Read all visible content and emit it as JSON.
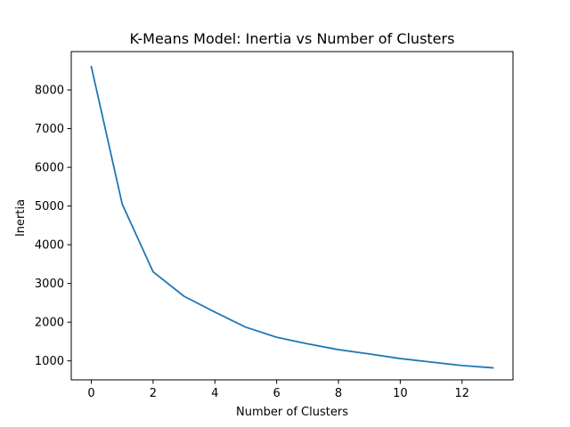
{
  "chart_data": {
    "type": "line",
    "title": "K-Means Model: Inertia vs Number of Clusters",
    "xlabel": "Number of Clusters",
    "ylabel": "Inertia",
    "xlim": [
      -0.65,
      13.65
    ],
    "ylim": [
      510,
      8990
    ],
    "xticks": [
      0,
      2,
      4,
      6,
      8,
      10,
      12
    ],
    "yticks": [
      1000,
      2000,
      3000,
      4000,
      5000,
      6000,
      7000,
      8000
    ],
    "grid": false,
    "series": [
      {
        "color": "#1f77b4",
        "x": [
          0,
          1,
          2,
          3,
          4,
          5,
          6,
          7,
          8,
          9,
          10,
          11,
          12,
          13
        ],
        "y": [
          8600,
          5050,
          3300,
          2670,
          2260,
          1870,
          1610,
          1440,
          1290,
          1180,
          1060,
          970,
          880,
          820
        ]
      }
    ]
  }
}
